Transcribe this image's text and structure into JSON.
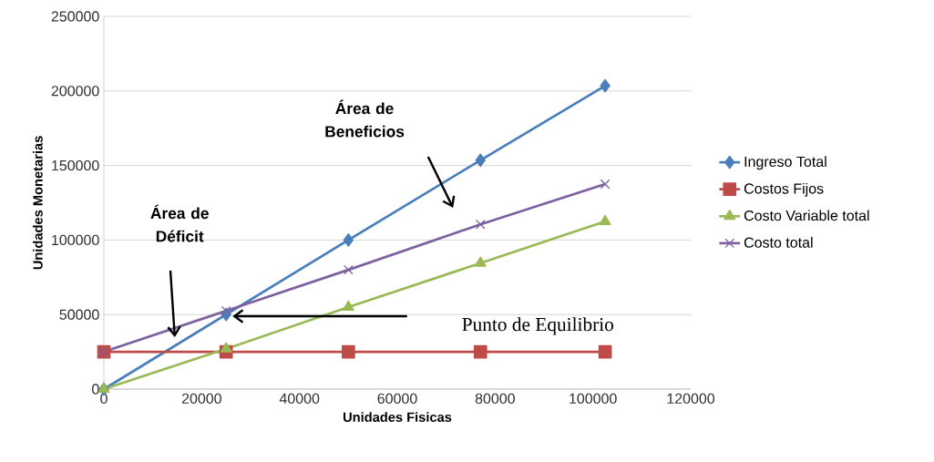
{
  "chart_data": {
    "type": "line",
    "xlabel": "Unidades Fisicas",
    "ylabel": "Unidades Monetarias",
    "x": [
      0,
      25000,
      50000,
      77000,
      102500
    ],
    "series": [
      {
        "name": "Ingreso Total",
        "color": "#4a7ebb",
        "marker": "diamond",
        "values": [
          0,
          50000,
          100000,
          153500,
          203500
        ]
      },
      {
        "name": "Costos Fijos",
        "color": "#be4b48",
        "marker": "square",
        "values": [
          25000,
          25000,
          25000,
          25000,
          25000
        ]
      },
      {
        "name": "Costo Variable total",
        "color": "#98b954",
        "marker": "triangle",
        "values": [
          0,
          27000,
          55000,
          84500,
          112500
        ]
      },
      {
        "name": "Costo total",
        "color": "#7d60a0",
        "marker": "cross",
        "values": [
          25000,
          52500,
          80000,
          110500,
          137500
        ]
      }
    ],
    "xlim": [
      0,
      120000
    ],
    "ylim": [
      0,
      250000
    ],
    "xticks": [
      0,
      20000,
      40000,
      60000,
      80000,
      100000,
      120000
    ],
    "yticks": [
      0,
      50000,
      100000,
      150000,
      200000,
      250000
    ],
    "grid": "y",
    "legend": "right",
    "line_style": "solid",
    "annotations": [
      "Área de Beneficios",
      "Área de Déficit",
      "Punto de Equilibrio"
    ]
  }
}
